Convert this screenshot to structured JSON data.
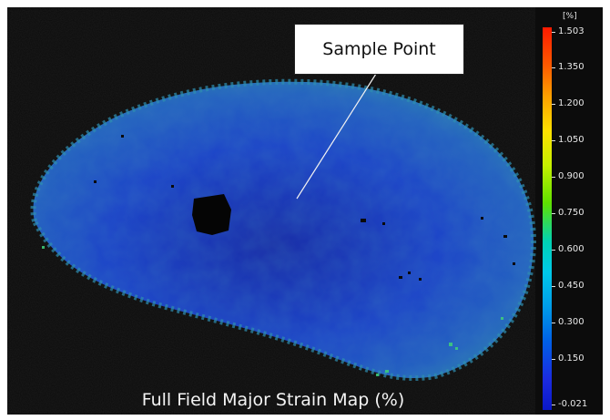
{
  "image": {
    "callout_label": "Sample Point",
    "caption": "Full Field Major Strain Map (%)"
  },
  "legend": {
    "unit": "[%]",
    "ticks": [
      "1.503",
      "1.350",
      "1.200",
      "1.050",
      "0.900",
      "0.750",
      "0.600",
      "0.450",
      "0.300",
      "0.150",
      "-0.021"
    ],
    "colors": {
      "high": "#ff1a00",
      "mid_high": "#ffe000",
      "mid": "#5ee000",
      "mid_low": "#00c8e8",
      "low": "#0a18c8"
    }
  },
  "map_colors": {
    "background": "#0c0c0c",
    "specimen_base": "#1e46c8",
    "specimen_dark": "#1a2fa8",
    "specimen_edge": "#2a7fb0",
    "hole": "#050505"
  }
}
